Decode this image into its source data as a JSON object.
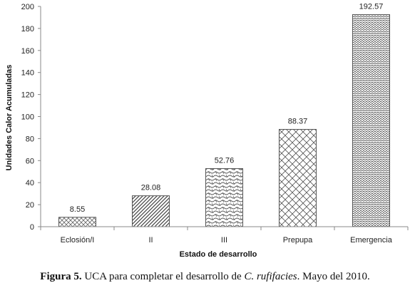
{
  "chart_data": {
    "type": "bar",
    "categories": [
      "Eclosión/I",
      "II",
      "III",
      "Prepupa",
      "Emergencia"
    ],
    "values": [
      8.55,
      28.08,
      52.76,
      88.37,
      192.57
    ],
    "data_labels": [
      "8.55",
      "28.08",
      "52.76",
      "88.37",
      "192.57"
    ],
    "xlabel": "Estado de desarrollo",
    "ylabel": "Unidades Calor Acumuladas",
    "ylim": [
      0,
      200
    ],
    "yticks": [
      0,
      20,
      40,
      60,
      80,
      100,
      120,
      140,
      160,
      180,
      200
    ],
    "grid": false,
    "legend": "none"
  },
  "caption": {
    "figure": "Figura 5.",
    "text_before": " UCA para completar el desarrollo de ",
    "species": "C. rufifacies",
    "text_after": ". Mayo del 2010."
  },
  "colors": {
    "axis": "#888888",
    "bar_stroke": "#555555",
    "pattern": "#555555"
  }
}
